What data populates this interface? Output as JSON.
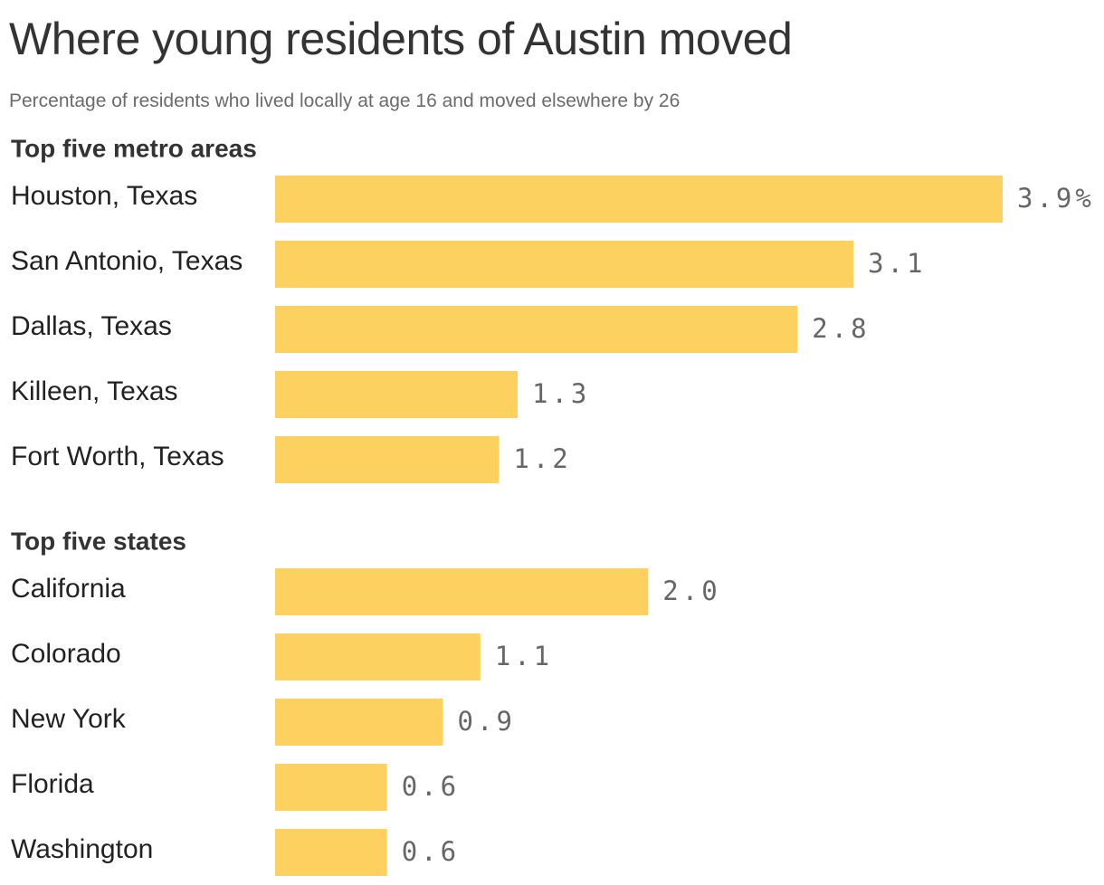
{
  "header": {
    "title": "Where young residents of Austin moved",
    "subtitle": "Percentage of residents who lived locally at age 16 and moved elsewhere by 26"
  },
  "colors": {
    "bar": "#fdd15f"
  },
  "chart_data": {
    "type": "bar",
    "orientation": "horizontal",
    "unit": "%",
    "xlim": [
      0,
      3.9
    ],
    "groups": [
      {
        "title": "Top five metro areas",
        "categories": [
          "Houston, Texas",
          "San Antonio, Texas",
          "Dallas, Texas",
          "Killeen, Texas",
          "Fort Worth, Texas"
        ],
        "values": [
          3.9,
          3.1,
          2.8,
          1.3,
          1.2
        ],
        "value_labels": [
          "3.9%",
          "3.1",
          "2.8",
          "1.3",
          "1.2"
        ]
      },
      {
        "title": "Top five states",
        "categories": [
          "California",
          "Colorado",
          "New York",
          "Florida",
          "Washington"
        ],
        "values": [
          2.0,
          1.1,
          0.9,
          0.6,
          0.6
        ],
        "value_labels": [
          "2.0",
          "1.1",
          "0.9",
          "0.6",
          "0.6"
        ]
      }
    ]
  }
}
